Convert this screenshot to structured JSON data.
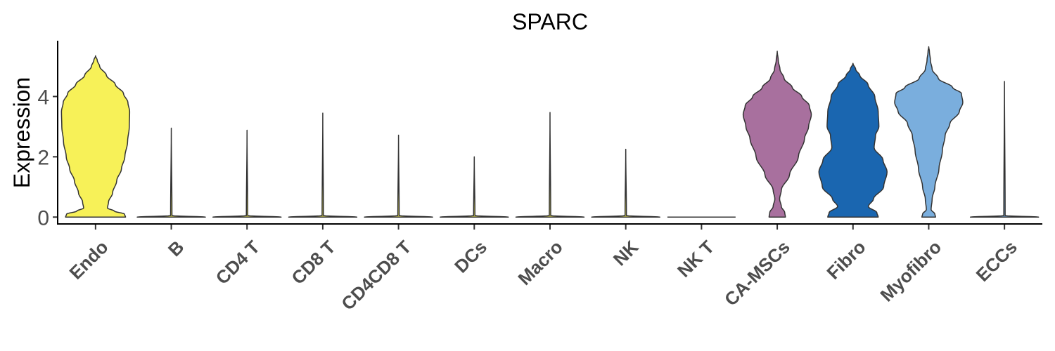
{
  "chart_data": {
    "type": "violin",
    "title": "SPARC",
    "xlabel": "",
    "ylabel": "Expression",
    "ylim": [
      -0.25,
      5.85
    ],
    "yticks": [
      0,
      2,
      4
    ],
    "grid": false,
    "legend": "none",
    "categories": [
      "Endo",
      "B",
      "CD4 T",
      "CD8 T",
      "CD4CD8 T",
      "DCs",
      "Macro",
      "NK",
      "NK T",
      "CA-MSCs",
      "Fibro",
      "Myofibro",
      "ECCs"
    ],
    "colors": [
      "#F7F158",
      "#F7F158",
      "#F7F158",
      "#F7F158",
      "#F7F158",
      "#F7F158",
      "#F7F158",
      "#F7F158",
      "#F7F158",
      "#A8709E",
      "#1A66B0",
      "#7AAEDD",
      "#7AAEDD"
    ],
    "max_values": [
      5.35,
      2.95,
      2.88,
      3.45,
      2.72,
      2.0,
      3.47,
      2.25,
      0.0,
      5.5,
      5.1,
      5.65,
      4.5
    ],
    "density_profiles": [
      [
        [
          0,
          0.88
        ],
        [
          0.1,
          0.85
        ],
        [
          0.2,
          0.55
        ],
        [
          0.3,
          0.35
        ],
        [
          0.5,
          0.38
        ],
        [
          0.8,
          0.5
        ],
        [
          1.2,
          0.62
        ],
        [
          1.6,
          0.76
        ],
        [
          2.0,
          0.86
        ],
        [
          2.5,
          0.94
        ],
        [
          3.0,
          0.99
        ],
        [
          3.5,
          1.0
        ],
        [
          3.8,
          0.95
        ],
        [
          4.1,
          0.82
        ],
        [
          4.4,
          0.58
        ],
        [
          4.7,
          0.32
        ],
        [
          5.0,
          0.12
        ],
        [
          5.2,
          0.05
        ],
        [
          5.35,
          0.0
        ]
      ],
      [
        [
          0,
          1.0
        ],
        [
          0.05,
          0.02
        ],
        [
          2.95,
          0.0
        ]
      ],
      [
        [
          0,
          1.0
        ],
        [
          0.05,
          0.02
        ],
        [
          2.88,
          0.0
        ]
      ],
      [
        [
          0,
          1.0
        ],
        [
          0.05,
          0.02
        ],
        [
          3.45,
          0.0
        ]
      ],
      [
        [
          0,
          1.0
        ],
        [
          0.05,
          0.02
        ],
        [
          2.72,
          0.0
        ]
      ],
      [
        [
          0,
          1.0
        ],
        [
          0.05,
          0.02
        ],
        [
          2.0,
          0.0
        ]
      ],
      [
        [
          0,
          1.0
        ],
        [
          0.05,
          0.02
        ],
        [
          3.47,
          0.0
        ]
      ],
      [
        [
          0,
          1.0
        ],
        [
          0.05,
          0.02
        ],
        [
          2.25,
          0.0
        ]
      ],
      [
        [
          0,
          1.0
        ]
      ],
      [
        [
          0,
          0.24
        ],
        [
          0.15,
          0.22
        ],
        [
          0.35,
          0.12
        ],
        [
          0.6,
          0.07
        ],
        [
          0.9,
          0.12
        ],
        [
          1.4,
          0.36
        ],
        [
          2.0,
          0.62
        ],
        [
          2.6,
          0.8
        ],
        [
          3.0,
          0.92
        ],
        [
          3.4,
          1.0
        ],
        [
          3.7,
          0.94
        ],
        [
          4.0,
          0.72
        ],
        [
          4.3,
          0.44
        ],
        [
          4.6,
          0.2
        ],
        [
          4.9,
          0.08
        ],
        [
          5.2,
          0.03
        ],
        [
          5.5,
          0.0
        ]
      ],
      [
        [
          0,
          0.74
        ],
        [
          0.15,
          0.7
        ],
        [
          0.35,
          0.45
        ],
        [
          0.6,
          0.6
        ],
        [
          1.0,
          0.9
        ],
        [
          1.5,
          1.0
        ],
        [
          1.9,
          0.88
        ],
        [
          2.3,
          0.62
        ],
        [
          2.7,
          0.66
        ],
        [
          3.0,
          0.76
        ],
        [
          3.5,
          0.74
        ],
        [
          4.0,
          0.64
        ],
        [
          4.4,
          0.44
        ],
        [
          4.7,
          0.2
        ],
        [
          4.9,
          0.08
        ],
        [
          5.1,
          0.0
        ]
      ],
      [
        [
          0,
          0.2
        ],
        [
          0.1,
          0.18
        ],
        [
          0.25,
          0.07
        ],
        [
          0.6,
          0.1
        ],
        [
          1.0,
          0.18
        ],
        [
          1.6,
          0.3
        ],
        [
          2.2,
          0.4
        ],
        [
          2.7,
          0.48
        ],
        [
          3.1,
          0.62
        ],
        [
          3.5,
          0.9
        ],
        [
          3.8,
          1.0
        ],
        [
          4.1,
          0.96
        ],
        [
          4.3,
          0.7
        ],
        [
          4.6,
          0.28
        ],
        [
          4.9,
          0.1
        ],
        [
          5.2,
          0.05
        ],
        [
          5.5,
          0.02
        ],
        [
          5.65,
          0.0
        ]
      ],
      [
        [
          0,
          1.0
        ],
        [
          0.05,
          0.02
        ],
        [
          4.5,
          0.0
        ]
      ]
    ]
  }
}
